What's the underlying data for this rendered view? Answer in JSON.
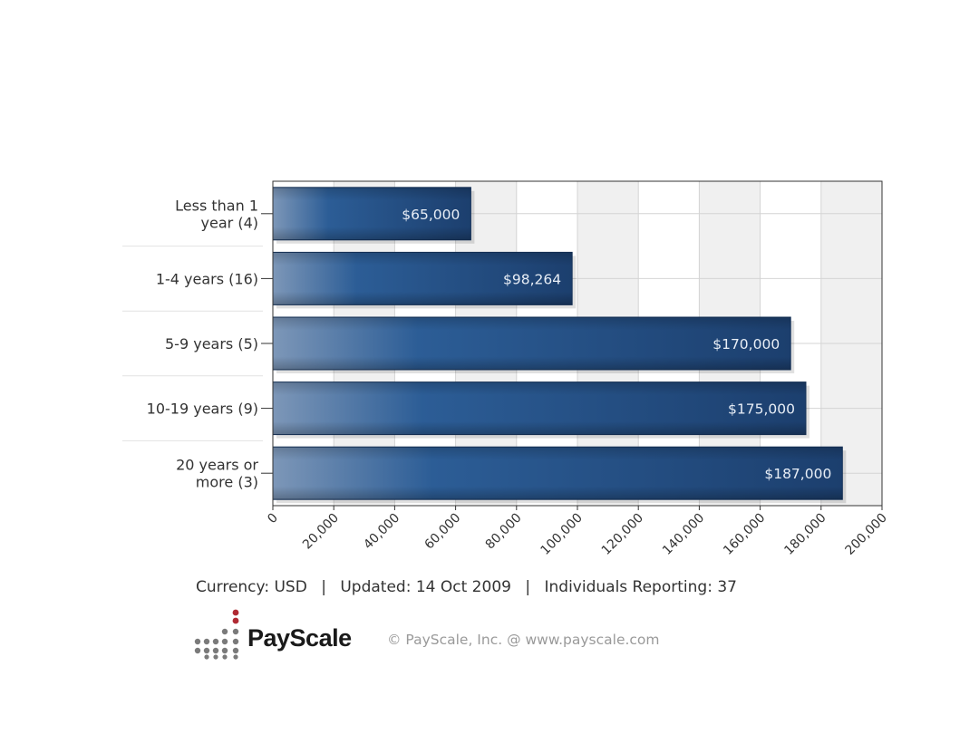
{
  "chart_data": {
    "type": "bar",
    "orientation": "horizontal",
    "categories": [
      [
        "Less than 1",
        "year (4)"
      ],
      [
        "1-4 years (16)"
      ],
      [
        "5-9 years (5)"
      ],
      [
        "10-19 years (9)"
      ],
      [
        "20 years or",
        "more (3)"
      ]
    ],
    "values": [
      65000,
      98264,
      170000,
      175000,
      187000
    ],
    "data_labels": [
      "$65,000",
      "$98,264",
      "$170,000",
      "$175,000",
      "$187,000"
    ],
    "xlim": [
      0,
      200000
    ],
    "x_ticks": [
      "0",
      "20,000",
      "40,000",
      "60,000",
      "80,000",
      "100,000",
      "120,000",
      "140,000",
      "160,000",
      "180,000",
      "200,000"
    ],
    "grid": true,
    "title": "",
    "xlabel": "",
    "ylabel": "",
    "colors": {
      "bar_dark": "#1c3f6e",
      "bar_mid": "#2c5d96",
      "bar_light": "#7d97b8",
      "label_text": "#e8eef6",
      "grid": "#d4d4d4",
      "band": "#f0f0f0",
      "axis": "#333333"
    }
  },
  "footer": {
    "currency": "Currency: USD",
    "updated": "Updated: 14 Oct 2009",
    "individuals": "Individuals Reporting: 37",
    "separator": "|"
  },
  "brand": {
    "name_pay": "Pay",
    "name_scale": "Scale",
    "copyright": "© PayScale, Inc. @ www.payscale.com",
    "logo_icon": "payscale-dot-grid-icon",
    "colors": {
      "pay": "#1a1a1a",
      "scale": "#1a1a1a",
      "dot_gray": "#7a7a7a",
      "dot_red": "#b02a33"
    }
  }
}
